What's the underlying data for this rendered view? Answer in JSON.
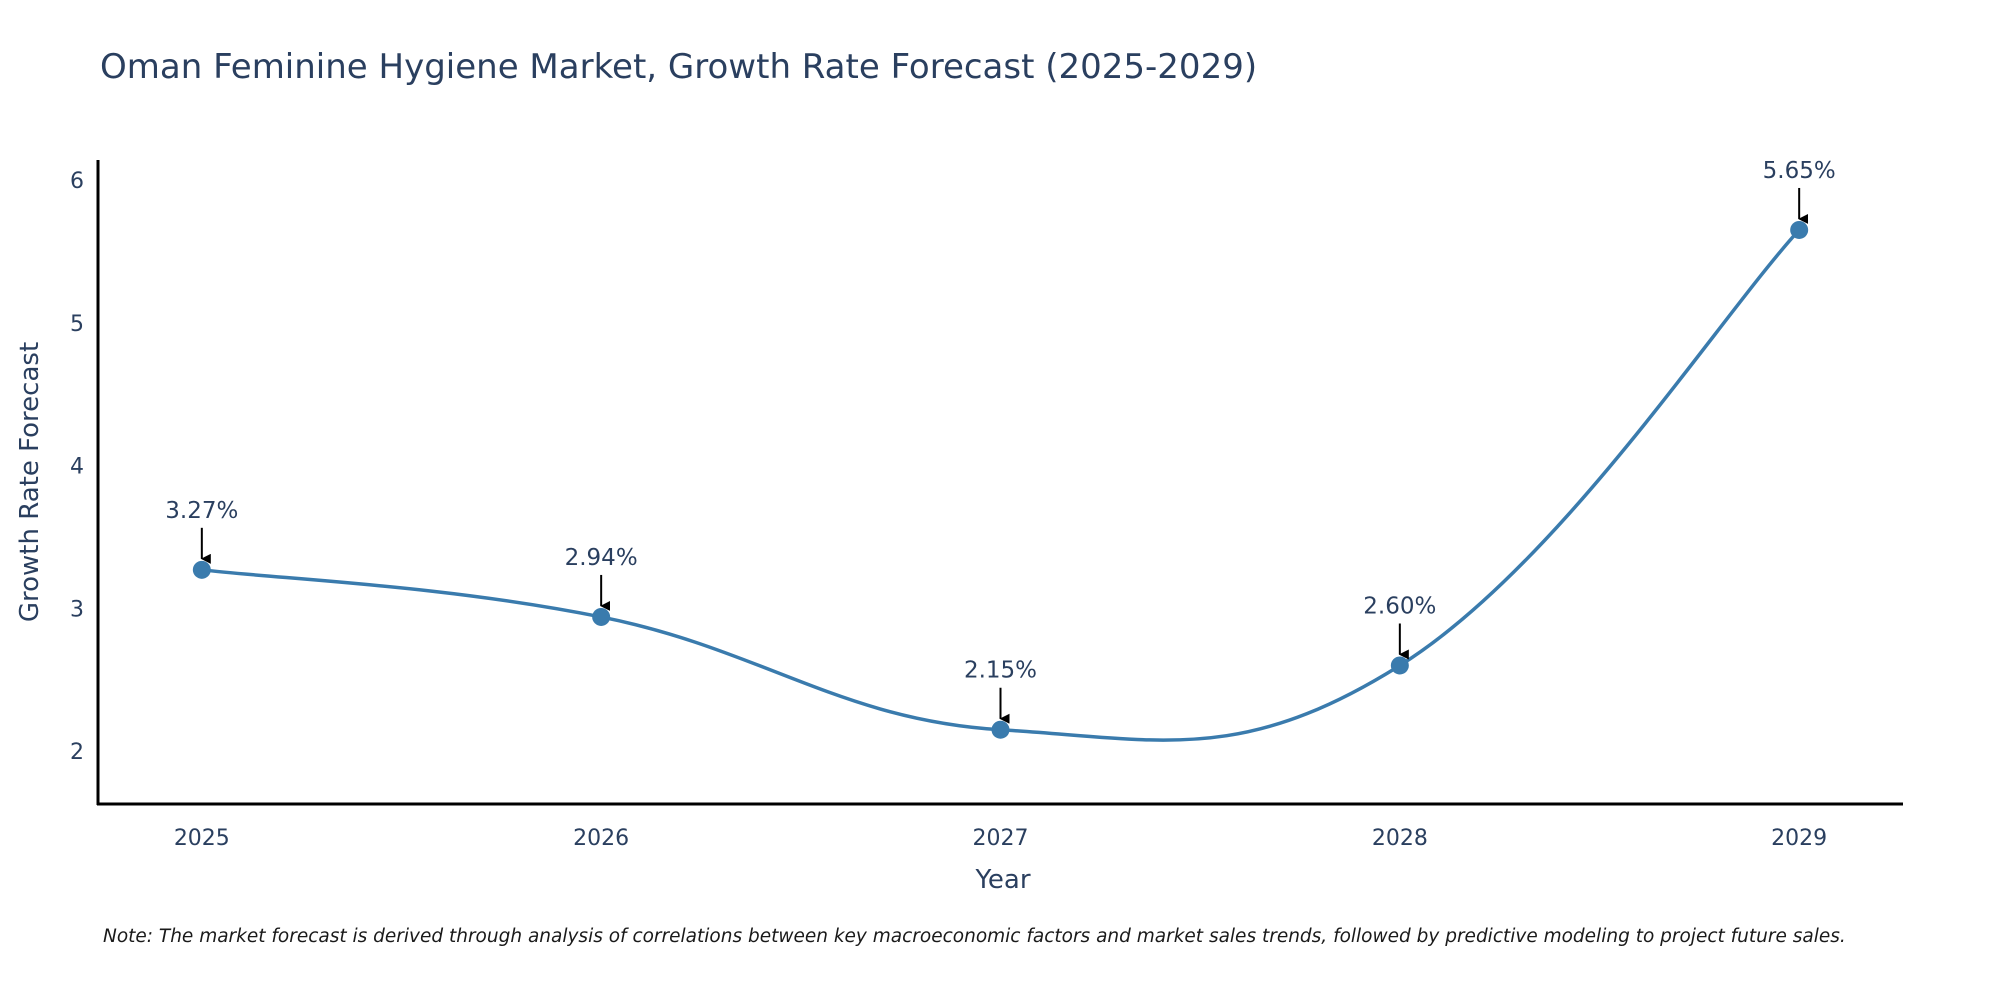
{
  "chart_data": {
    "type": "line",
    "title": "Oman Feminine Hygiene Market, Growth Rate Forecast (2025-2029)",
    "xlabel": "Year",
    "ylabel": "Growth Rate Forecast",
    "x": [
      2025,
      2026,
      2027,
      2028,
      2029
    ],
    "categories": [
      "2025",
      "2026",
      "2027",
      "2028",
      "2029"
    ],
    "series": [
      {
        "name": "Growth Rate Forecast",
        "values": [
          3.27,
          2.94,
          2.15,
          2.6,
          5.65
        ],
        "color": "#3a7bad"
      }
    ],
    "data_labels": [
      "3.27%",
      "2.94%",
      "2.15%",
      "2.60%",
      "5.65%"
    ],
    "yticks": [
      2,
      3,
      4,
      5,
      6
    ],
    "ytick_labels": [
      "2",
      "3",
      "4",
      "5",
      "6"
    ],
    "ylim": [
      1.63,
      6.14
    ],
    "xlim": [
      2024.74,
      2029.26
    ],
    "grid": false,
    "line_shape": "spline"
  },
  "note": "Note: The market forecast is derived through analysis of correlations between key macroeconomic factors and market sales trends, followed by predictive modeling to project future sales.",
  "colors": {
    "line": "#3a7bad",
    "marker": "#3a7bad",
    "text": "#2a3f5f",
    "axis": "#000000",
    "arrow": "#000000"
  }
}
